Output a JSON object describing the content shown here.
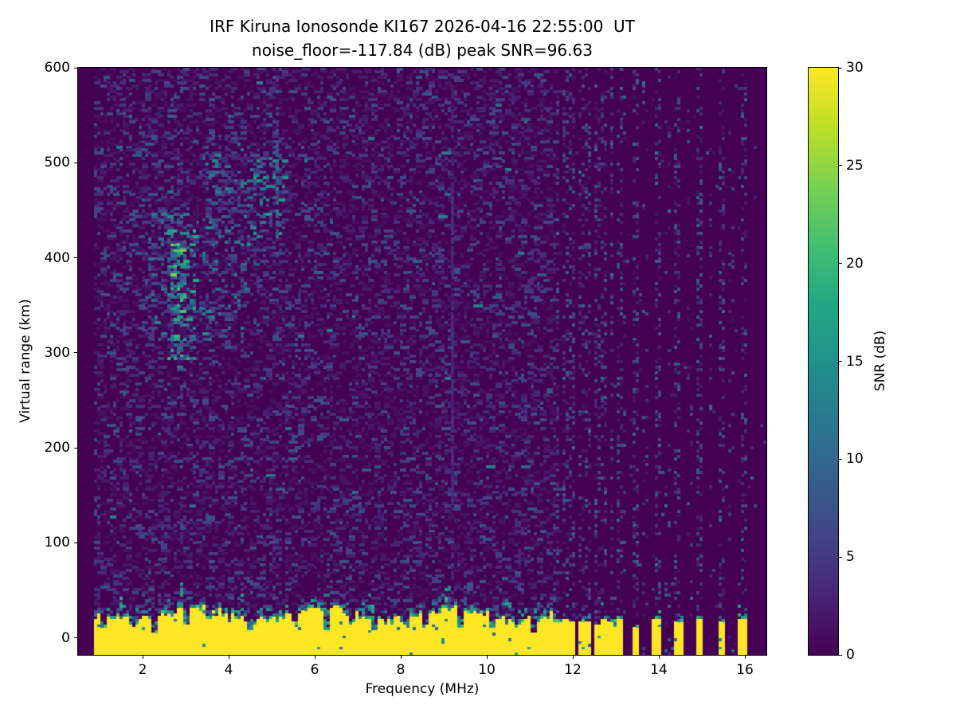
{
  "figure": {
    "title_line1": "IRF Kiruna Ionosonde KI167 2026-04-16 22:55:00  UT",
    "title_line2": "noise_floor=-117.84 (dB) peak SNR=96.63",
    "background_color": "#ffffff"
  },
  "chart_data": {
    "type": "heatmap",
    "title": "IRF Kiruna Ionosonde KI167 2026-04-16 22:55:00  UT",
    "subtitle": "noise_floor=-117.84 (dB) peak SNR=96.63",
    "station": "IRF Kiruna Ionosonde KI167",
    "timestamp_ut": "2026-04-16 22:55:00",
    "noise_floor_db": -117.84,
    "peak_snr_db": 96.63,
    "xlabel": "Frequency (MHz)",
    "ylabel": "Virtual range (km)",
    "colorbar_label": "SNR (dB)",
    "xlim": [
      0.5,
      16.5
    ],
    "ylim": [
      -18,
      600
    ],
    "clim": [
      0,
      30
    ],
    "xticks": [
      2,
      4,
      6,
      8,
      10,
      12,
      14,
      16
    ],
    "yticks": [
      0,
      100,
      200,
      300,
      400,
      500,
      600
    ],
    "cticks": [
      0,
      5,
      10,
      15,
      20,
      25,
      30
    ],
    "grid": false,
    "legend_position": "colorbar-right",
    "colormap": {
      "name": "viridis",
      "stops": [
        [
          0.0,
          "#440154"
        ],
        [
          0.1,
          "#482475"
        ],
        [
          0.2,
          "#414487"
        ],
        [
          0.3,
          "#355f8d"
        ],
        [
          0.4,
          "#2a788e"
        ],
        [
          0.5,
          "#21918c"
        ],
        [
          0.6,
          "#22a884"
        ],
        [
          0.7,
          "#44bf70"
        ],
        [
          0.8,
          "#7ad151"
        ],
        [
          0.9,
          "#bddf26"
        ],
        [
          1.0,
          "#fde725"
        ]
      ]
    },
    "features": {
      "seed": 167,
      "grid_cols": 216,
      "grid_rows": 211,
      "data_fmin_mhz": 0.93,
      "continuous_band_fmax_mhz": 11.6,
      "background_noise": {
        "dash_prob": 0.34,
        "v_base": 1.2,
        "v_spread": 6.5,
        "v_pow": 2.2,
        "teal_prob": 0.012,
        "teal_v0": 6,
        "teal_v1": 14
      },
      "ground_band": {
        "top_km_mean": 23,
        "top_km_wave_amp": 6,
        "top_km_wave_freq": 2.1,
        "top_km_jitter": 9,
        "yellow_v": 30,
        "embedded_teal_prob": 0.012,
        "cap_p": 0.75,
        "cap_v0": 11,
        "cap_v1": 22,
        "cap_km": 4,
        "trans_p": 0.45,
        "trans_decay_km": 6,
        "trans_km": 16,
        "trans_v0": 7,
        "trans_v1": 19,
        "notches": [
          [
            1.12,
            0.5
          ],
          [
            1.78,
            0.6
          ],
          [
            2.31,
            0.15
          ],
          [
            3.0,
            0.5
          ],
          [
            3.52,
            0.6
          ],
          [
            4.02,
            0.55
          ],
          [
            4.48,
            0.3
          ],
          [
            5.52,
            0.6
          ],
          [
            6.26,
            0.25
          ],
          [
            6.9,
            0.6
          ],
          [
            7.4,
            0.3
          ],
          [
            8.1,
            0.6
          ],
          [
            8.55,
            0.45
          ],
          [
            9.42,
            0.4
          ],
          [
            10.15,
            0.5
          ],
          [
            10.7,
            0.6
          ],
          [
            11.1,
            0.25
          ]
        ],
        "teal_spike_freqs": [
          1.5,
          2.95,
          4.3,
          6.3,
          7.3,
          9.1,
          10.5,
          11.15
        ],
        "spike_height_km": 26,
        "spike_p": 0.4,
        "spike_v0": 8,
        "spike_v1": 20
      },
      "comb_stripes": {
        "f_start": 11.65,
        "f_step": 0.18,
        "count": 9,
        "width_mhz": 0.09,
        "top_km": 16,
        "top_jitter": 7
      },
      "isolated_stripes": [
        [
          13.45,
          0.05,
          10
        ],
        [
          13.95,
          0.1,
          18
        ],
        [
          14.45,
          0.1,
          16
        ],
        [
          14.95,
          0.1,
          20
        ],
        [
          15.45,
          0.1,
          16
        ],
        [
          15.95,
          0.1,
          18
        ]
      ],
      "right_region_noise": {
        "on_stripe_prob": 0.25,
        "mid_col_prob": 0.08,
        "elsewhere_prob": 0.008,
        "v0": 1.5,
        "v1": 9,
        "teal_prob": 0.03,
        "teal_v1": 12
      },
      "echo_clusters": [
        [
          1.5,
          2.25,
          320,
          570,
          0.05,
          3,
          9
        ],
        [
          2.15,
          2.6,
          310,
          450,
          0.12,
          4,
          13
        ],
        [
          2.58,
          3.18,
          295,
          445,
          0.26,
          5,
          20
        ],
        [
          2.7,
          3.0,
          345,
          425,
          0.33,
          10,
          26
        ],
        [
          3.4,
          3.7,
          305,
          530,
          0.14,
          4,
          15
        ],
        [
          3.75,
          4.4,
          325,
          505,
          0.11,
          4,
          13
        ],
        [
          4.45,
          5.3,
          405,
          512,
          0.2,
          5,
          17
        ],
        [
          1.2,
          5.6,
          270,
          580,
          0.025,
          3,
          8
        ],
        [
          1.7,
          3.4,
          106,
          122,
          0.16,
          3,
          7
        ]
      ],
      "rfi_lines": [
        [
          5.14,
          420,
          512,
          0.55,
          5,
          14
        ],
        [
          5.14,
          512,
          600,
          0.28,
          3,
          9
        ],
        [
          9.2,
          40,
          135,
          0.3,
          2,
          3.5
        ],
        [
          9.2,
          135,
          475,
          0.85,
          2.2,
          4.5
        ],
        [
          9.2,
          475,
          600,
          0.35,
          2,
          3.5
        ]
      ]
    }
  }
}
